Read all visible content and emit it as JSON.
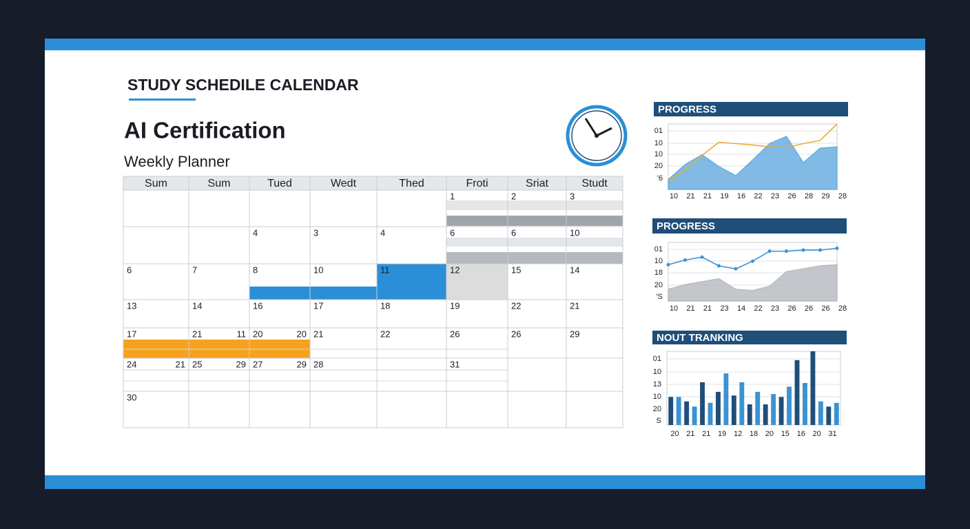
{
  "header": {
    "title": "STUDY SCHEDILE CALENDAR",
    "heading": "AI Certification",
    "subheading": "Weekly Planner"
  },
  "calendar": {
    "headers": [
      "Sum",
      "Sum",
      "Tued",
      "Wedt",
      "Thed",
      "Froti",
      "Sriat",
      "Studt"
    ],
    "rows": [
      [
        "",
        "",
        "",
        "",
        "",
        "1",
        "2",
        "3"
      ],
      [
        "",
        "",
        "4",
        "3",
        "4",
        "6",
        "6",
        "10"
      ],
      [
        "6",
        "7",
        "8",
        "10",
        "11",
        "12",
        "15",
        "14"
      ],
      [
        "13",
        "14",
        "16",
        "17",
        "18",
        "19",
        "22",
        "21"
      ],
      [
        "17",
        [
          "21",
          "11"
        ],
        [
          "20",
          "20"
        ],
        "21",
        "22",
        "26",
        "26",
        "29"
      ],
      [
        [
          "24",
          "21"
        ],
        [
          "25",
          "29"
        ],
        [
          "27",
          "29"
        ],
        "28",
        "",
        "31",
        "",
        ""
      ],
      [
        "30",
        "",
        "",
        "",
        "",
        "",
        "",
        ""
      ]
    ]
  },
  "chart_data": [
    {
      "type": "line",
      "title": "PROGRESS",
      "categories": [
        "10",
        "21",
        "21",
        "19",
        "16",
        "22",
        "23",
        "26",
        "28",
        "29",
        "28"
      ],
      "y_labels": [
        "01",
        "10",
        "10",
        "20",
        "'6"
      ],
      "ylim": [
        0,
        100
      ],
      "series": [
        {
          "color": "#6aaee0",
          "fill": true,
          "values": [
            15,
            38,
            53,
            35,
            21,
            45,
            70,
            81,
            41,
            63,
            65
          ]
        },
        {
          "color": "#eeaa3a",
          "fill": false,
          "values": [
            12,
            30,
            52,
            72,
            70,
            68,
            65,
            64,
            70,
            75,
            100
          ]
        }
      ]
    },
    {
      "type": "line",
      "title": "PROGRESS",
      "categories": [
        "10",
        "21",
        "21",
        "23",
        "14",
        "22",
        "23",
        "26",
        "26",
        "26",
        "28"
      ],
      "y_labels": [
        "01",
        "10",
        "18",
        "20",
        "'S"
      ],
      "ylim": [
        0,
        100
      ],
      "series": [
        {
          "color": "#b8bcc2",
          "fill": true,
          "values": [
            20,
            28,
            33,
            38,
            20,
            18,
            25,
            50,
            55,
            60,
            62
          ]
        },
        {
          "color": "#3a93d2",
          "fill": false,
          "markers": true,
          "values": [
            62,
            70,
            75,
            60,
            55,
            68,
            85,
            85,
            87,
            87,
            90
          ]
        }
      ]
    },
    {
      "type": "bar",
      "title": "NOUT TRANKING",
      "categories": [
        "20",
        null,
        "21",
        null,
        "21",
        null,
        "19",
        null,
        "12",
        null,
        "18",
        null,
        "20",
        null,
        "15",
        null,
        "16",
        null,
        "20",
        null,
        "31",
        null
      ],
      "y_labels": [
        "01",
        "10",
        "13",
        "10",
        "20",
        "S"
      ],
      "ylim": [
        0,
        100
      ],
      "colors": [
        "#1f4e79",
        "#3a93d2"
      ],
      "values": [
        38,
        38,
        32,
        25,
        58,
        30,
        45,
        70,
        40,
        58,
        28,
        45,
        28,
        42,
        38,
        52,
        88,
        57,
        100,
        32,
        25,
        30
      ]
    }
  ]
}
